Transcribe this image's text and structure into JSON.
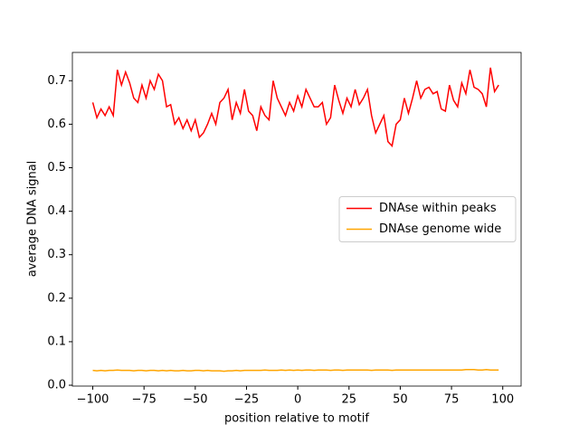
{
  "chart_data": {
    "type": "line",
    "xlabel": "position relative to motif",
    "ylabel": "average DNA signal",
    "x": [
      -100,
      -98,
      -96,
      -94,
      -92,
      -90,
      -88,
      -86,
      -84,
      -82,
      -80,
      -78,
      -76,
      -74,
      -72,
      -70,
      -68,
      -66,
      -64,
      -62,
      -60,
      -58,
      -56,
      -54,
      -52,
      -50,
      -48,
      -46,
      -44,
      -42,
      -40,
      -38,
      -36,
      -34,
      -32,
      -30,
      -28,
      -26,
      -24,
      -22,
      -20,
      -18,
      -16,
      -14,
      -12,
      -10,
      -8,
      -6,
      -4,
      -2,
      0,
      2,
      4,
      6,
      8,
      10,
      12,
      14,
      16,
      18,
      20,
      22,
      24,
      26,
      28,
      30,
      32,
      34,
      36,
      38,
      40,
      42,
      44,
      46,
      48,
      50,
      52,
      54,
      56,
      58,
      60,
      62,
      64,
      66,
      68,
      70,
      72,
      74,
      76,
      78,
      80,
      82,
      84,
      86,
      88,
      90,
      92,
      94,
      96,
      98
    ],
    "series": [
      {
        "name": "DNAse within peaks",
        "color": "#ff0000",
        "values": [
          0.65,
          0.615,
          0.635,
          0.62,
          0.64,
          0.62,
          0.725,
          0.69,
          0.72,
          0.695,
          0.66,
          0.65,
          0.69,
          0.66,
          0.7,
          0.68,
          0.715,
          0.7,
          0.64,
          0.645,
          0.6,
          0.615,
          0.59,
          0.61,
          0.585,
          0.61,
          0.57,
          0.58,
          0.6,
          0.625,
          0.6,
          0.65,
          0.66,
          0.68,
          0.61,
          0.65,
          0.625,
          0.68,
          0.63,
          0.62,
          0.585,
          0.64,
          0.62,
          0.61,
          0.7,
          0.66,
          0.64,
          0.62,
          0.65,
          0.63,
          0.665,
          0.64,
          0.68,
          0.66,
          0.64,
          0.64,
          0.65,
          0.6,
          0.615,
          0.69,
          0.655,
          0.625,
          0.66,
          0.64,
          0.68,
          0.645,
          0.66,
          0.68,
          0.62,
          0.58,
          0.6,
          0.62,
          0.56,
          0.55,
          0.6,
          0.61,
          0.66,
          0.625,
          0.66,
          0.7,
          0.66,
          0.68,
          0.685,
          0.67,
          0.675,
          0.635,
          0.63,
          0.69,
          0.655,
          0.64,
          0.695,
          0.67,
          0.725,
          0.685,
          0.68,
          0.67,
          0.64,
          0.73,
          0.675,
          0.69
        ]
      },
      {
        "name": "DNAse genome wide",
        "color": "#ffa500",
        "values": [
          0.034,
          0.033,
          0.034,
          0.033,
          0.034,
          0.034,
          0.035,
          0.034,
          0.034,
          0.034,
          0.033,
          0.034,
          0.034,
          0.033,
          0.034,
          0.034,
          0.033,
          0.034,
          0.033,
          0.034,
          0.033,
          0.033,
          0.034,
          0.033,
          0.033,
          0.034,
          0.034,
          0.033,
          0.034,
          0.033,
          0.033,
          0.033,
          0.032,
          0.033,
          0.033,
          0.034,
          0.033,
          0.034,
          0.034,
          0.034,
          0.034,
          0.034,
          0.035,
          0.034,
          0.034,
          0.034,
          0.035,
          0.034,
          0.035,
          0.034,
          0.035,
          0.034,
          0.035,
          0.035,
          0.034,
          0.035,
          0.035,
          0.035,
          0.034,
          0.035,
          0.035,
          0.034,
          0.035,
          0.035,
          0.035,
          0.035,
          0.035,
          0.035,
          0.034,
          0.035,
          0.035,
          0.035,
          0.035,
          0.034,
          0.035,
          0.035,
          0.035,
          0.035,
          0.035,
          0.035,
          0.035,
          0.035,
          0.035,
          0.035,
          0.035,
          0.035,
          0.035,
          0.035,
          0.035,
          0.035,
          0.035,
          0.036,
          0.036,
          0.036,
          0.035,
          0.035,
          0.036,
          0.035,
          0.035,
          0.035
        ]
      }
    ],
    "xlim": [
      -109.95,
      108.95
    ],
    "ylim": [
      -0.002,
      0.765
    ],
    "xticks": [
      {
        "value": -100,
        "label": "−100"
      },
      {
        "value": -75,
        "label": "−75"
      },
      {
        "value": -50,
        "label": "−50"
      },
      {
        "value": -25,
        "label": "−25"
      },
      0,
      25,
      50,
      75,
      100
    ],
    "yticks": [
      {
        "value": 0,
        "label": "0.0"
      },
      0.1,
      0.2,
      0.3,
      0.4,
      0.5,
      0.6,
      0.7
    ],
    "legend": "center right"
  }
}
